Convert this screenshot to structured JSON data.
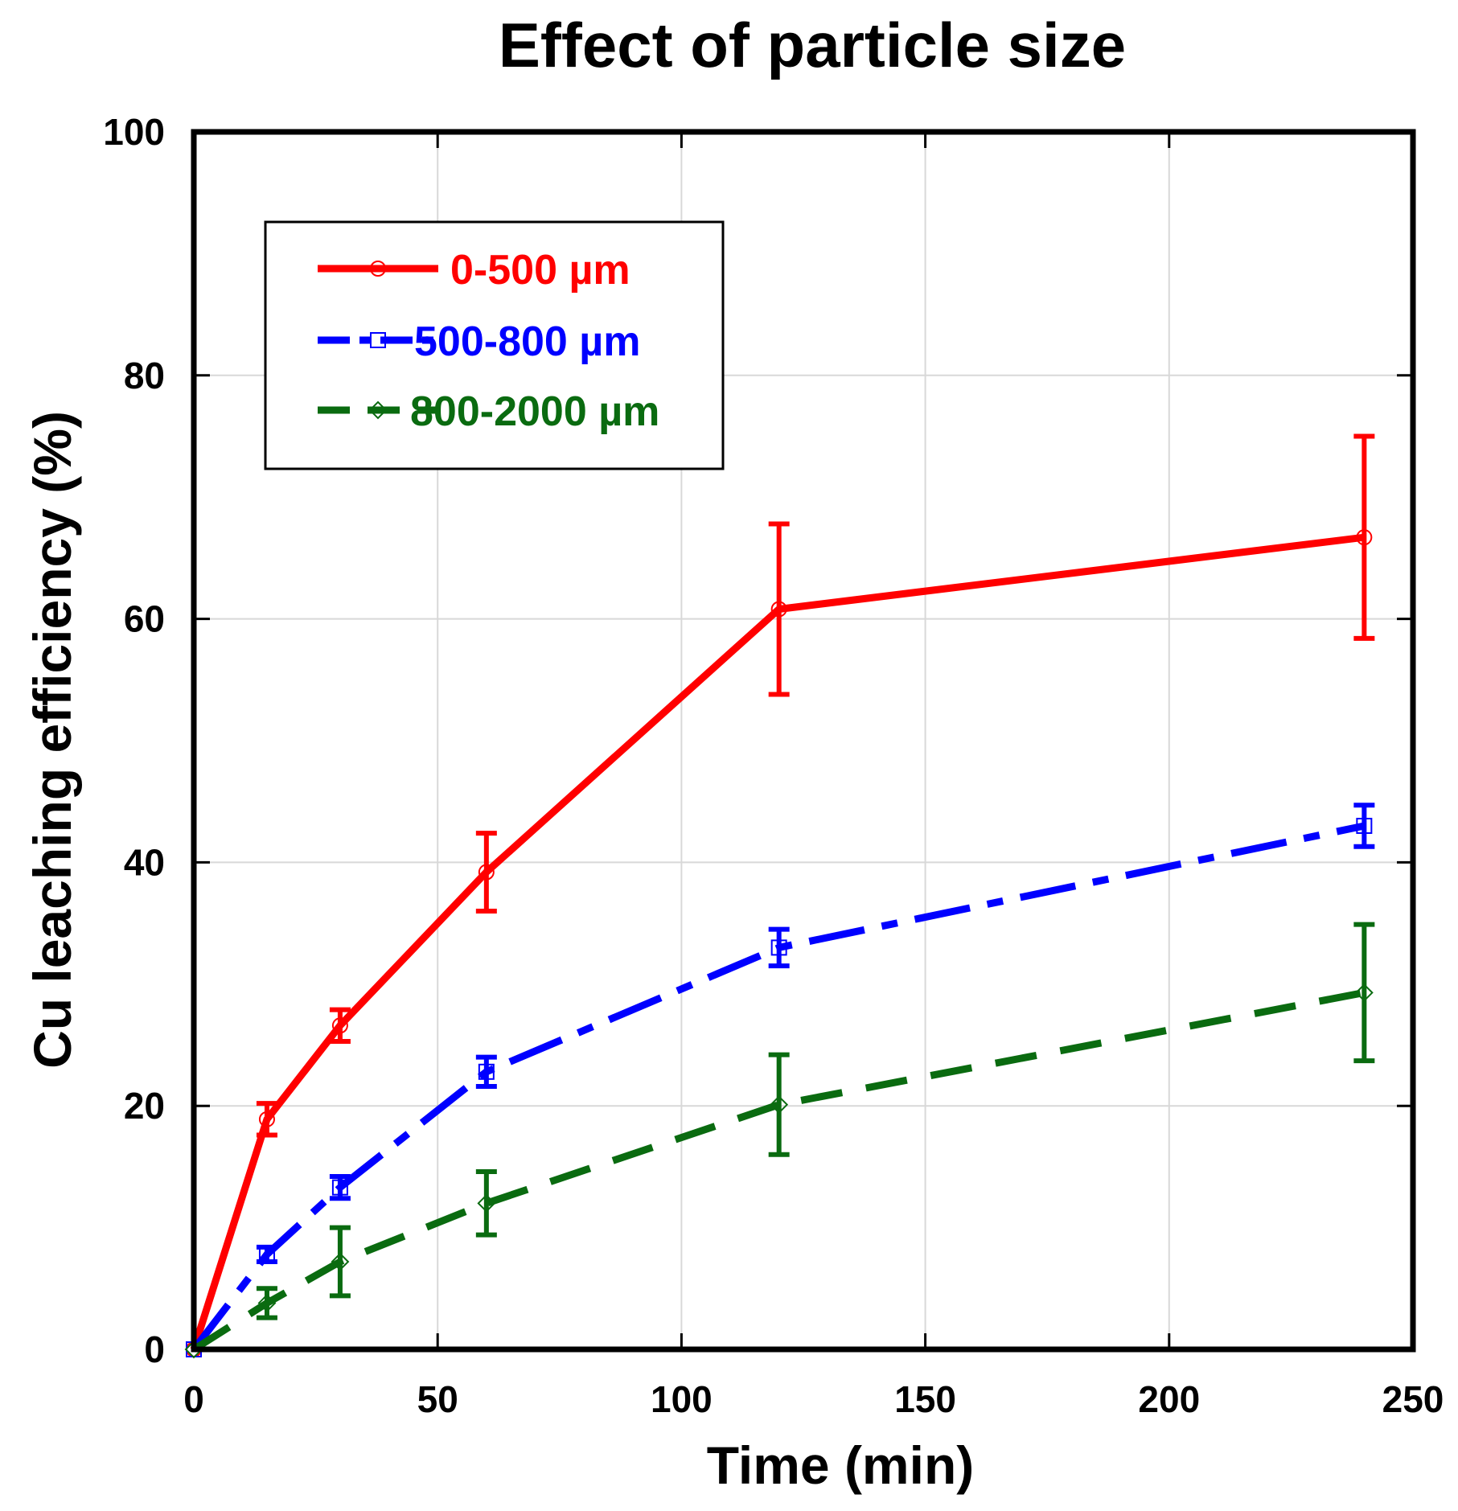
{
  "chart_data": {
    "type": "line",
    "title": "Effect of particle size",
    "xlabel": "Time (min)",
    "ylabel": "Cu leaching efficiency (%)",
    "xlim": [
      0,
      250
    ],
    "ylim": [
      0,
      100
    ],
    "xticks": [
      0,
      50,
      100,
      150,
      200,
      250
    ],
    "yticks": [
      0,
      20,
      40,
      60,
      80,
      100
    ],
    "grid": true,
    "legend_position": "top-left",
    "series": [
      {
        "name": "0-500 µm",
        "color": "#ff0000",
        "line_style": "solid",
        "marker": "circle",
        "x": [
          0,
          15,
          30,
          60,
          120,
          240
        ],
        "y": [
          0,
          18.9,
          26.6,
          39.2,
          60.8,
          66.7
        ],
        "err": [
          0,
          1.3,
          1.3,
          3.2,
          7.0,
          8.3
        ]
      },
      {
        "name": "500-800 µm",
        "color": "#0000ff",
        "line_style": "dash-dot",
        "marker": "square",
        "x": [
          0,
          15,
          30,
          60,
          120,
          240
        ],
        "y": [
          0,
          7.8,
          13.3,
          22.8,
          33.0,
          43.0
        ],
        "err": [
          0,
          0.6,
          0.9,
          1.2,
          1.5,
          1.7
        ]
      },
      {
        "name": "800-2000 µm",
        "color": "#0a6b10",
        "line_style": "dashed",
        "marker": "diamond",
        "x": [
          0,
          15,
          30,
          60,
          120,
          240
        ],
        "y": [
          0,
          3.8,
          7.2,
          12.0,
          20.1,
          29.3
        ],
        "err": [
          0,
          1.2,
          2.8,
          2.6,
          4.1,
          5.6
        ]
      }
    ]
  }
}
